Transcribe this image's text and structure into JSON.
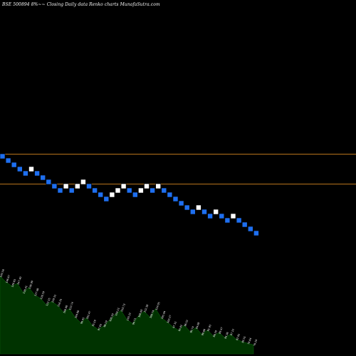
{
  "chart_data": {
    "type": "renko",
    "title": "BSE 500894  8%~~  Closing Daily data  Renko  charts MunafaSutra.com",
    "colors": {
      "background": "#000000",
      "down_brick": "#1e6ff0",
      "up_brick": "#ffffff",
      "reference_line": "#b8741c",
      "volume_fill": "#003300",
      "volume_text": "#ffffff"
    },
    "reference_lines": [
      {
        "label": "upper",
        "level": 0.0
      },
      {
        "label": "lower",
        "level": 5.0
      }
    ],
    "bricks": [
      {
        "i": 0,
        "y": 0,
        "dir": "down"
      },
      {
        "i": 1,
        "y": 1,
        "dir": "down"
      },
      {
        "i": 2,
        "y": 2,
        "dir": "down"
      },
      {
        "i": 3,
        "y": 3,
        "dir": "down"
      },
      {
        "i": 4,
        "y": 4,
        "dir": "down"
      },
      {
        "i": 5,
        "y": 3,
        "dir": "up"
      },
      {
        "i": 6,
        "y": 4,
        "dir": "down"
      },
      {
        "i": 7,
        "y": 5,
        "dir": "down"
      },
      {
        "i": 8,
        "y": 6,
        "dir": "down"
      },
      {
        "i": 9,
        "y": 7,
        "dir": "down"
      },
      {
        "i": 10,
        "y": 8,
        "dir": "down"
      },
      {
        "i": 11,
        "y": 7,
        "dir": "up"
      },
      {
        "i": 12,
        "y": 8,
        "dir": "down"
      },
      {
        "i": 13,
        "y": 7,
        "dir": "up"
      },
      {
        "i": 14,
        "y": 6,
        "dir": "up"
      },
      {
        "i": 15,
        "y": 7,
        "dir": "down"
      },
      {
        "i": 16,
        "y": 8,
        "dir": "down"
      },
      {
        "i": 17,
        "y": 9,
        "dir": "down"
      },
      {
        "i": 18,
        "y": 10,
        "dir": "down"
      },
      {
        "i": 19,
        "y": 9,
        "dir": "up"
      },
      {
        "i": 20,
        "y": 8,
        "dir": "up"
      },
      {
        "i": 21,
        "y": 7,
        "dir": "up"
      },
      {
        "i": 22,
        "y": 8,
        "dir": "down"
      },
      {
        "i": 23,
        "y": 9,
        "dir": "down"
      },
      {
        "i": 24,
        "y": 8,
        "dir": "up"
      },
      {
        "i": 25,
        "y": 7,
        "dir": "up"
      },
      {
        "i": 26,
        "y": 8,
        "dir": "down"
      },
      {
        "i": 27,
        "y": 7,
        "dir": "up"
      },
      {
        "i": 28,
        "y": 8,
        "dir": "down"
      },
      {
        "i": 29,
        "y": 9,
        "dir": "down"
      },
      {
        "i": 30,
        "y": 10,
        "dir": "down"
      },
      {
        "i": 31,
        "y": 11,
        "dir": "down"
      },
      {
        "i": 32,
        "y": 12,
        "dir": "down"
      },
      {
        "i": 33,
        "y": 13,
        "dir": "down"
      },
      {
        "i": 34,
        "y": 12,
        "dir": "up"
      },
      {
        "i": 35,
        "y": 13,
        "dir": "down"
      },
      {
        "i": 36,
        "y": 14,
        "dir": "down"
      },
      {
        "i": 37,
        "y": 13,
        "dir": "up"
      },
      {
        "i": 38,
        "y": 14,
        "dir": "down"
      },
      {
        "i": 39,
        "y": 15,
        "dir": "down"
      },
      {
        "i": 40,
        "y": 14,
        "dir": "up"
      },
      {
        "i": 41,
        "y": 15,
        "dir": "down"
      },
      {
        "i": 42,
        "y": 16,
        "dir": "down"
      },
      {
        "i": 43,
        "y": 17,
        "dir": "down"
      },
      {
        "i": 44,
        "y": 18,
        "dir": "down"
      }
    ],
    "volume": [
      {
        "label": "143.58",
        "v": 0.95
      },
      {
        "label": "146.67",
        "v": 0.88
      },
      {
        "label": "140.83",
        "v": 0.83
      },
      {
        "label": "147.40",
        "v": 0.86
      },
      {
        "label": "130.41",
        "v": 0.75
      },
      {
        "label": "136.99",
        "v": 0.81
      },
      {
        "label": "127.86",
        "v": 0.72
      },
      {
        "label": "128.59",
        "v": 0.68
      },
      {
        "label": "122.15",
        "v": 0.6
      },
      {
        "label": "119.55",
        "v": 0.64
      },
      {
        "label": "116.31",
        "v": 0.59
      },
      {
        "label": "108.88",
        "v": 0.51
      },
      {
        "label": "113.74",
        "v": 0.55
      },
      {
        "label": "104.86",
        "v": 0.45
      },
      {
        "label": "98.45",
        "v": 0.38
      },
      {
        "label": "101.47",
        "v": 0.44
      },
      {
        "label": "95.19",
        "v": 0.35
      },
      {
        "label": "97.83",
        "v": 0.3
      },
      {
        "label": "96.19",
        "v": 0.34
      },
      {
        "label": "100.50",
        "v": 0.41
      },
      {
        "label": "104.11",
        "v": 0.48
      },
      {
        "label": "110.73",
        "v": 0.53
      },
      {
        "label": "103.22",
        "v": 0.42
      },
      {
        "label": "99.71",
        "v": 0.37
      },
      {
        "label": "106.60",
        "v": 0.46
      },
      {
        "label": "112.38",
        "v": 0.52
      },
      {
        "label": "108.74",
        "v": 0.45
      },
      {
        "label": "114.05",
        "v": 0.55
      },
      {
        "label": "105.94",
        "v": 0.44
      },
      {
        "label": "100.27",
        "v": 0.39
      },
      {
        "label": "97.15",
        "v": 0.33
      },
      {
        "label": "93.81",
        "v": 0.29
      },
      {
        "label": "96.52",
        "v": 0.35
      },
      {
        "label": "90.74",
        "v": 0.27
      },
      {
        "label": "94.08",
        "v": 0.32
      },
      {
        "label": "88.66",
        "v": 0.24
      },
      {
        "label": "91.93",
        "v": 0.29
      },
      {
        "label": "86.29",
        "v": 0.22
      },
      {
        "label": "89.47",
        "v": 0.26
      },
      {
        "label": "84.36",
        "v": 0.2
      },
      {
        "label": "87.12",
        "v": 0.24
      },
      {
        "label": "82.95",
        "v": 0.18
      },
      {
        "label": "80.51",
        "v": 0.15
      },
      {
        "label": "78.64",
        "v": 0.13
      },
      {
        "label": "76.29",
        "v": 0.11
      }
    ]
  }
}
